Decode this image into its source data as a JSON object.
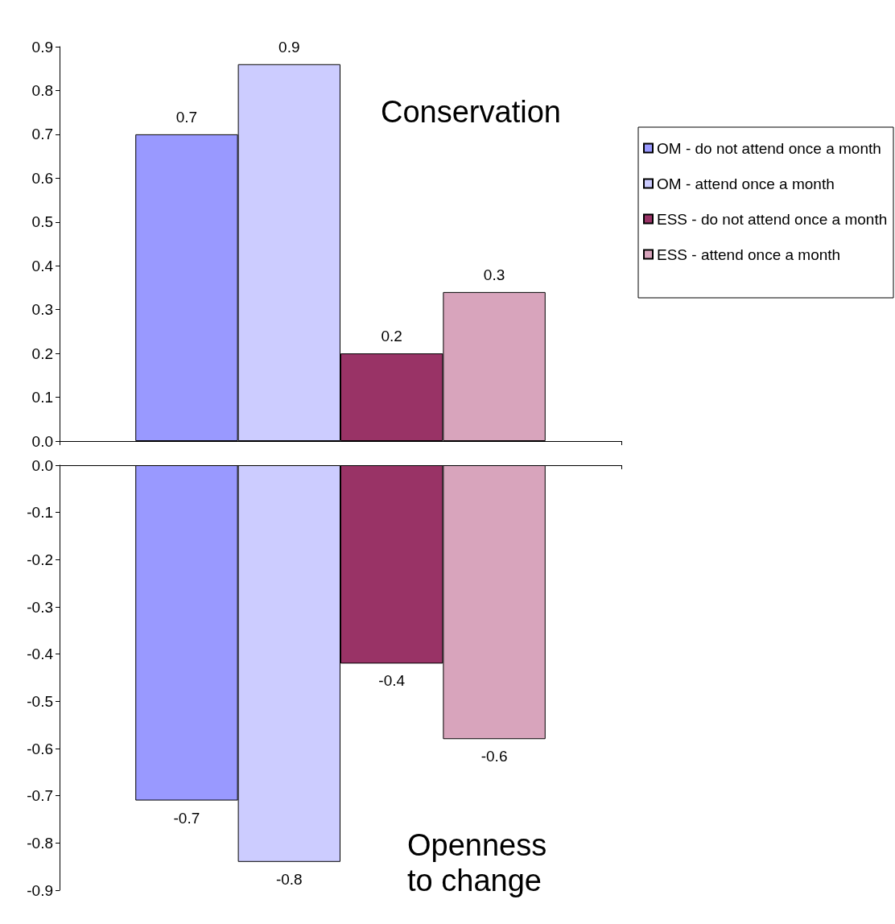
{
  "chart_data": [
    {
      "type": "bar",
      "categories": [
        null
      ],
      "annotations": [
        "Conservation"
      ],
      "ylim": [
        0,
        0.9
      ],
      "yticks": [
        {
          "value": 0,
          "label": "0.0"
        },
        0.1,
        0.2,
        0.3,
        0.4,
        0.5,
        0.6,
        0.7,
        0.8,
        0.9
      ],
      "legend": "right",
      "grid": false,
      "series": [
        {
          "name": "OM - do not attend once a month",
          "color": "#9999ff",
          "values": [
            0.7
          ],
          "value_labels": [
            "0.7"
          ]
        },
        {
          "name": "OM - attend once a month",
          "color": "#ccccff",
          "values": [
            0.86
          ],
          "value_labels": [
            "0.9"
          ]
        },
        {
          "name": "ESS - do not attend once a month",
          "color": "#993366",
          "values": [
            0.2
          ],
          "value_labels": [
            "0.2"
          ]
        },
        {
          "name": "ESS - attend once a month",
          "color": "#d8a4bc",
          "values": [
            0.34
          ],
          "value_labels": [
            "0.3"
          ]
        }
      ]
    },
    {
      "type": "bar",
      "categories": [
        null
      ],
      "annotations": [
        "Openness to change"
      ],
      "ylim": [
        -0.9,
        0
      ],
      "yticks": [
        -0.9,
        -0.8,
        -0.7,
        -0.6,
        -0.5,
        -0.4,
        -0.3,
        -0.2,
        -0.1,
        {
          "value": 0,
          "label": "0.0"
        }
      ],
      "grid": false,
      "series": [
        {
          "color": "#9999ff",
          "values": [
            -0.71
          ],
          "value_labels": [
            "-0.7"
          ]
        },
        {
          "color": "#ccccff",
          "values": [
            -0.84
          ],
          "value_labels": [
            "-0.8"
          ]
        },
        {
          "color": "#993366",
          "values": [
            -0.42
          ],
          "value_labels": [
            "-0.4"
          ]
        },
        {
          "color": "#d8a4bc",
          "values": [
            -0.58
          ],
          "value_labels": [
            "-0.6"
          ]
        }
      ]
    }
  ]
}
